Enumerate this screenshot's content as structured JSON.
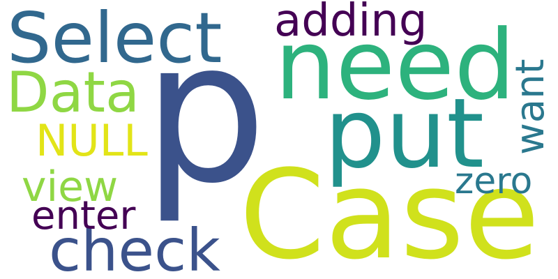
{
  "background": "#ffffff",
  "words": [
    {
      "id": "word-p",
      "text": "p",
      "color": "#3b528b"
    },
    {
      "id": "word-case",
      "text": "Case",
      "color": "#d0e11c"
    },
    {
      "id": "word-need",
      "text": "need",
      "color": "#2db27d"
    },
    {
      "id": "word-put",
      "text": "put",
      "color": "#21918c"
    },
    {
      "id": "word-select",
      "text": "Select",
      "color": "#31688e"
    },
    {
      "id": "word-check",
      "text": "check",
      "color": "#3b528b"
    },
    {
      "id": "word-data",
      "text": "Data",
      "color": "#8fd744"
    },
    {
      "id": "word-adding",
      "text": "adding",
      "color": "#440154"
    },
    {
      "id": "word-null",
      "text": "NULL",
      "color": "#e2e418"
    },
    {
      "id": "word-view",
      "text": "view",
      "color": "#8fd744"
    },
    {
      "id": "word-enter",
      "text": "enter",
      "color": "#440154"
    },
    {
      "id": "word-want",
      "text": "want",
      "color": "#2a788e"
    },
    {
      "id": "word-zero",
      "text": "zero",
      "color": "#2a788e"
    }
  ]
}
